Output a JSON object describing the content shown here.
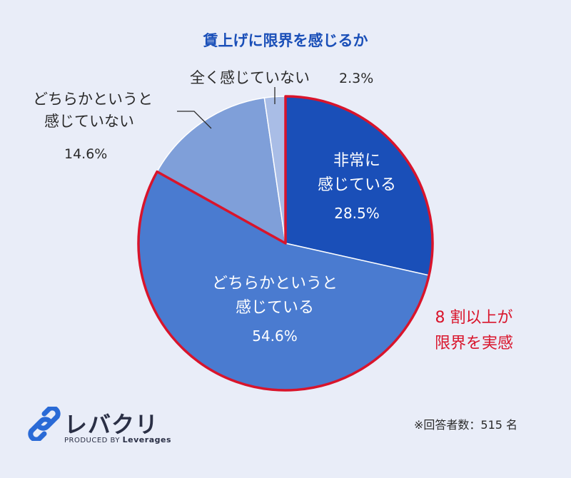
{
  "chart_data": {
    "type": "pie",
    "title": "賃上げに限界を感じるか",
    "slices": [
      {
        "label_lines": [
          "非常に",
          "感じている"
        ],
        "value": 28.5,
        "value_label": "28.5%",
        "color": "#1a4fb8"
      },
      {
        "label_lines": [
          "どちらかというと",
          "感じている"
        ],
        "value": 54.6,
        "value_label": "54.6%",
        "color": "#4a7bd0"
      },
      {
        "label_lines": [
          "どちらかというと",
          "感じていない"
        ],
        "value": 14.6,
        "value_label": "14.6%",
        "color": "#7f9fd9"
      },
      {
        "label_lines": [
          "全く感じていない"
        ],
        "value": 2.3,
        "value_label": "2.3%",
        "color": "#a9bde6"
      }
    ],
    "highlight_outline_color": "#d9142b",
    "annotation_lines": [
      "8 割以上が",
      "限界を実感"
    ],
    "annotation_color": "#d9142b"
  },
  "brand": {
    "name": "レバクリ",
    "produced_by": "PRODUCED BY",
    "company": "Leverages"
  },
  "note": "※回答者数：515 名"
}
